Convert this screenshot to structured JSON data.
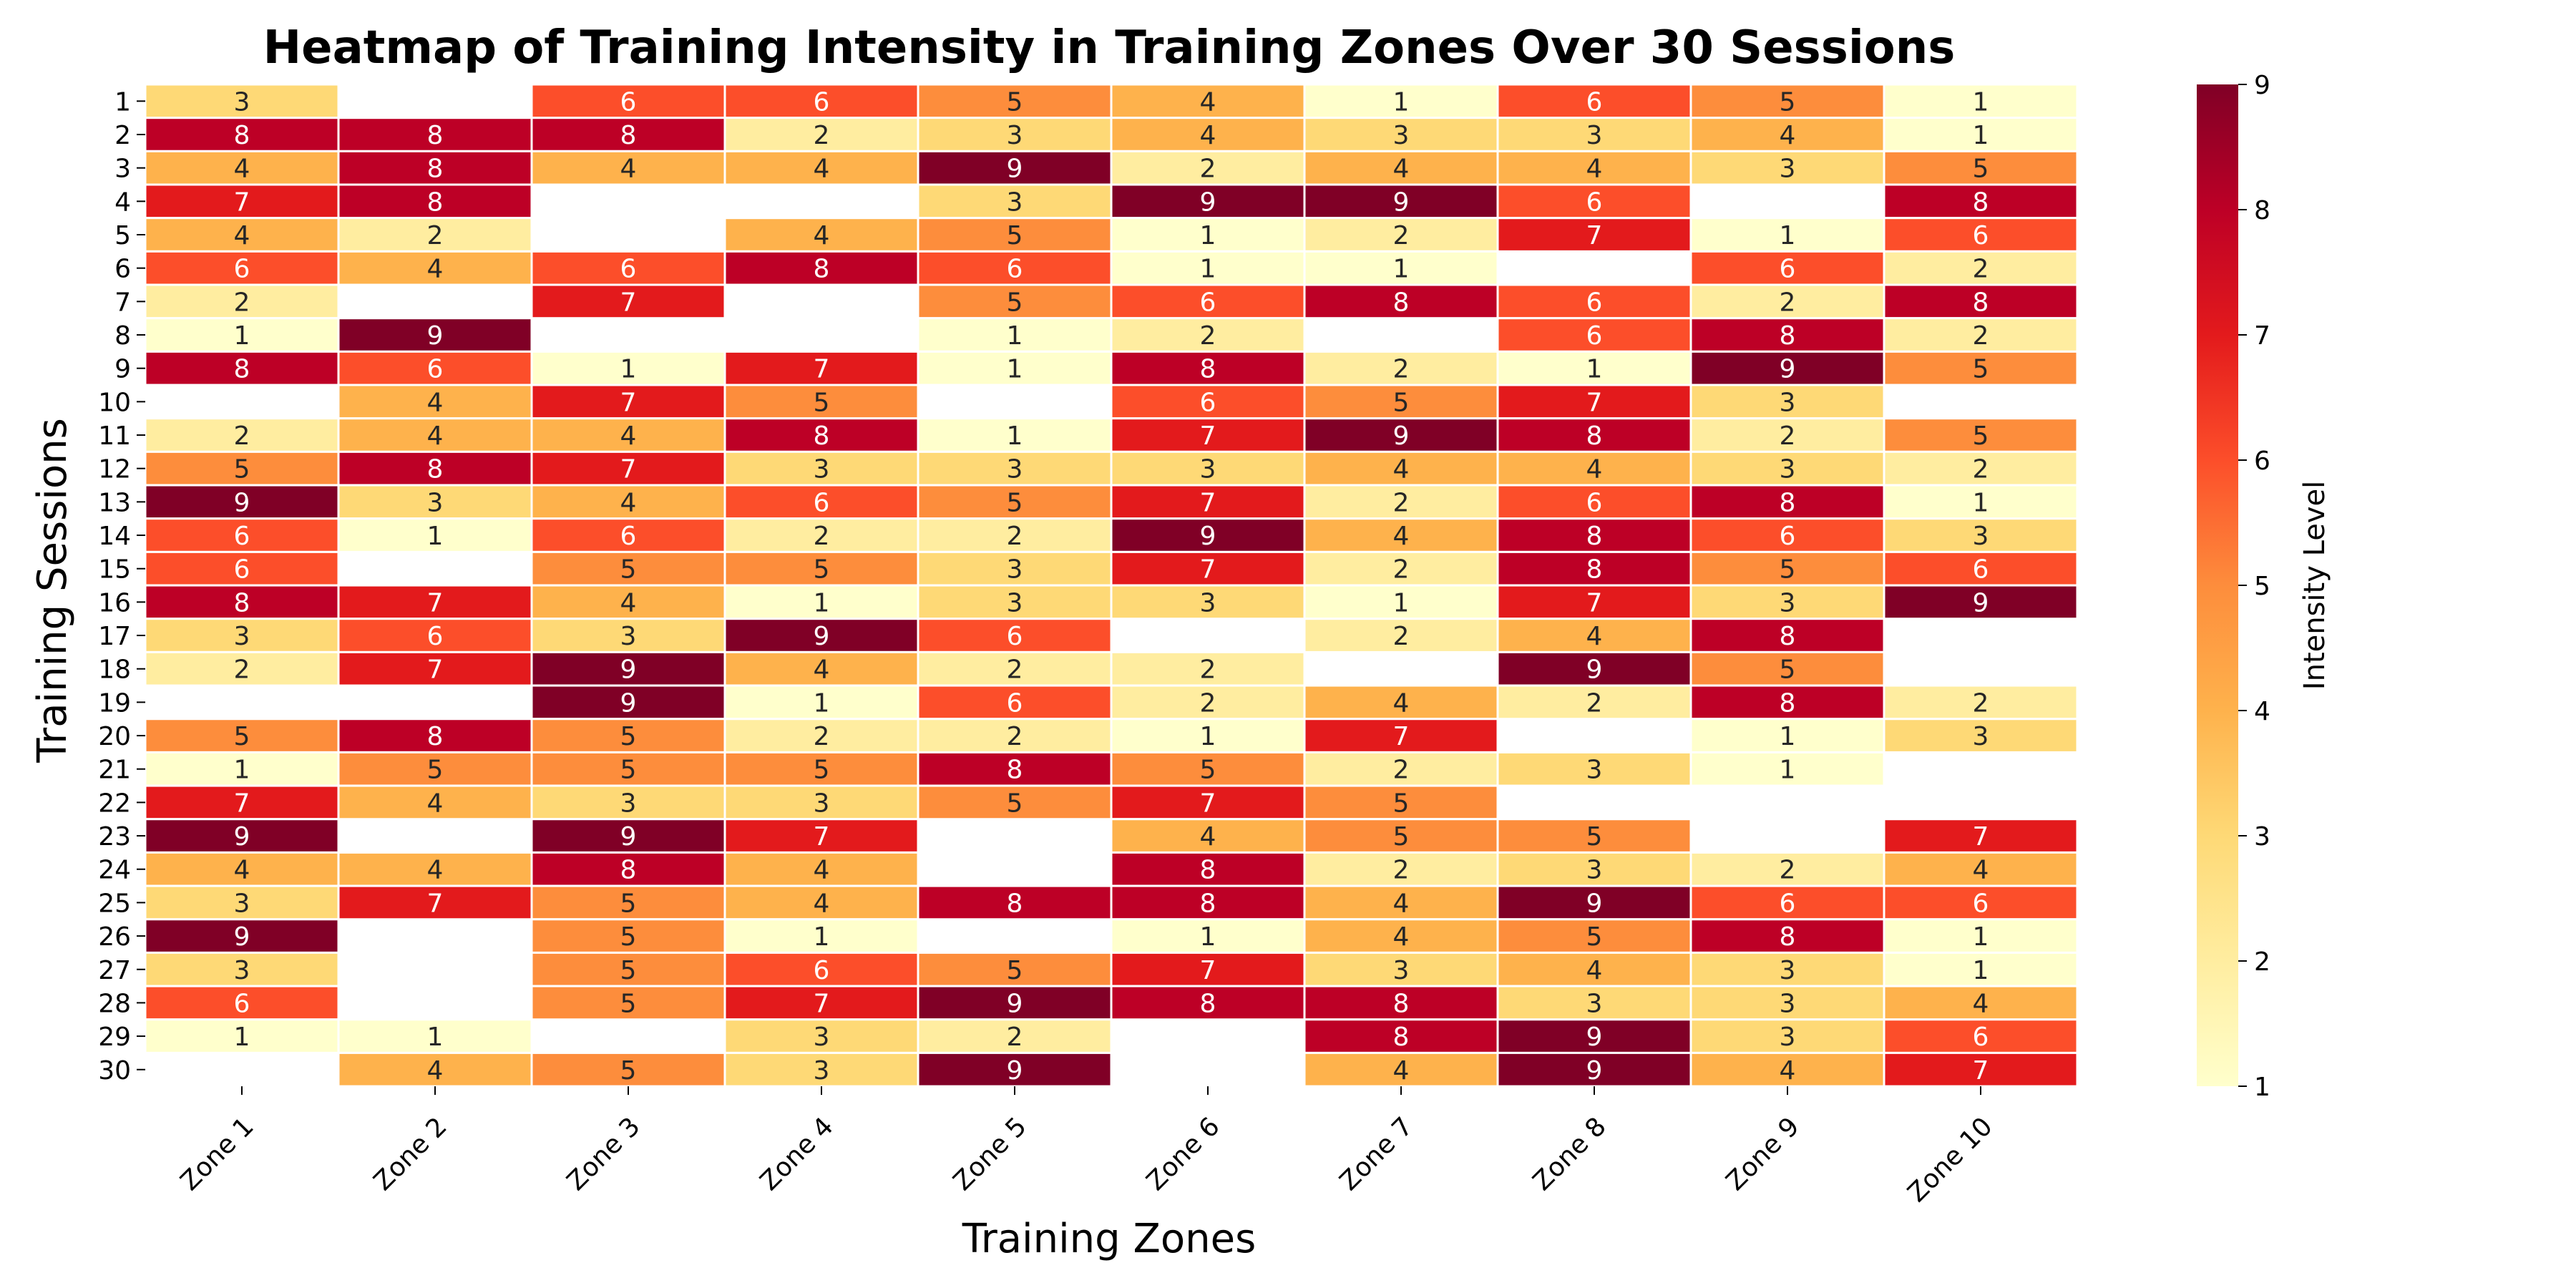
{
  "chart_data": {
    "type": "heatmap",
    "title": "Heatmap of Training Intensity in Training Zones Over 30 Sessions",
    "xlabel": "Training Zones",
    "ylabel": "Training Sessions",
    "colorbar_label": "Intensity Level",
    "colormap": "YlOrRd",
    "vmin": 1,
    "vmax": 9,
    "colorbar_ticks": [
      "1",
      "2",
      "3",
      "4",
      "5",
      "6",
      "7",
      "8",
      "9"
    ],
    "columns": [
      "Zone 1",
      "Zone 2",
      "Zone 3",
      "Zone 4",
      "Zone 5",
      "Zone 6",
      "Zone 7",
      "Zone 8",
      "Zone 9",
      "Zone 10"
    ],
    "rows": [
      "1",
      "2",
      "3",
      "4",
      "5",
      "6",
      "7",
      "8",
      "9",
      "10",
      "11",
      "12",
      "13",
      "14",
      "15",
      "16",
      "17",
      "18",
      "19",
      "20",
      "21",
      "22",
      "23",
      "24",
      "25",
      "26",
      "27",
      "28",
      "29",
      "30"
    ],
    "values": [
      [
        3,
        null,
        6,
        6,
        5,
        4,
        1,
        6,
        5,
        1
      ],
      [
        8,
        8,
        8,
        2,
        3,
        4,
        3,
        3,
        4,
        1
      ],
      [
        4,
        8,
        4,
        4,
        9,
        2,
        4,
        4,
        3,
        5
      ],
      [
        7,
        8,
        null,
        null,
        3,
        9,
        9,
        6,
        null,
        8
      ],
      [
        4,
        2,
        null,
        4,
        5,
        1,
        2,
        7,
        1,
        6
      ],
      [
        6,
        4,
        6,
        8,
        6,
        1,
        1,
        null,
        6,
        2
      ],
      [
        2,
        null,
        7,
        null,
        5,
        6,
        8,
        6,
        2,
        8
      ],
      [
        1,
        9,
        null,
        null,
        1,
        2,
        null,
        6,
        8,
        2
      ],
      [
        8,
        6,
        1,
        7,
        1,
        8,
        2,
        1,
        9,
        5
      ],
      [
        null,
        4,
        7,
        5,
        null,
        6,
        5,
        7,
        3,
        null
      ],
      [
        2,
        4,
        4,
        8,
        1,
        7,
        9,
        8,
        2,
        5
      ],
      [
        5,
        8,
        7,
        3,
        3,
        3,
        4,
        4,
        3,
        2
      ],
      [
        9,
        3,
        4,
        6,
        5,
        7,
        2,
        6,
        8,
        1
      ],
      [
        6,
        1,
        6,
        2,
        2,
        9,
        4,
        8,
        6,
        3
      ],
      [
        6,
        null,
        5,
        5,
        3,
        7,
        2,
        8,
        5,
        6
      ],
      [
        8,
        7,
        4,
        1,
        3,
        3,
        1,
        7,
        3,
        9
      ],
      [
        3,
        6,
        3,
        9,
        6,
        null,
        2,
        4,
        8,
        null
      ],
      [
        2,
        7,
        9,
        4,
        2,
        2,
        null,
        9,
        5,
        null
      ],
      [
        null,
        null,
        9,
        1,
        6,
        2,
        4,
        2,
        8,
        2
      ],
      [
        5,
        8,
        5,
        2,
        2,
        1,
        7,
        null,
        1,
        3
      ],
      [
        1,
        5,
        5,
        5,
        8,
        5,
        2,
        3,
        1,
        null
      ],
      [
        7,
        4,
        3,
        3,
        5,
        7,
        5,
        null,
        null,
        null
      ],
      [
        9,
        null,
        9,
        7,
        null,
        4,
        5,
        5,
        null,
        7
      ],
      [
        4,
        4,
        8,
        4,
        null,
        8,
        2,
        3,
        2,
        4
      ],
      [
        3,
        7,
        5,
        4,
        8,
        8,
        4,
        9,
        6,
        6
      ],
      [
        9,
        null,
        5,
        1,
        null,
        1,
        4,
        5,
        8,
        1
      ],
      [
        3,
        null,
        5,
        6,
        5,
        7,
        3,
        4,
        3,
        1
      ],
      [
        6,
        null,
        5,
        7,
        9,
        8,
        8,
        3,
        3,
        4
      ],
      [
        1,
        1,
        null,
        3,
        2,
        null,
        8,
        9,
        3,
        6
      ],
      [
        null,
        4,
        5,
        3,
        9,
        null,
        4,
        9,
        4,
        7
      ]
    ]
  }
}
